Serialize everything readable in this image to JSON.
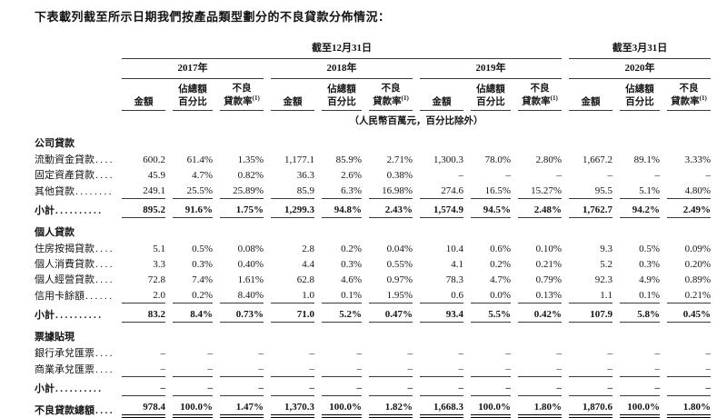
{
  "title": "下表載列截至所示日期我們按產品類型劃分的不良貸款分佈情況：",
  "table": {
    "period_groups": [
      {
        "label": "截至12月31日",
        "year_span": 3
      },
      {
        "label": "截至3月31日",
        "year_span": 1
      }
    ],
    "years": [
      "2017年",
      "2018年",
      "2019年",
      "2020年"
    ],
    "subheaders": {
      "amount": "金額",
      "share_lines": [
        "佔總額",
        "百分比"
      ],
      "npl_lines": [
        "不良",
        "貸款率"
      ],
      "npl_note_ref": "(1)"
    },
    "unit_note": "（人民幣百萬元，百分比除外）",
    "sections": [
      {
        "name": "公司貸款",
        "rows": [
          {
            "label": "流動資金貸款",
            "dots": "....",
            "values": [
              "600.2",
              "61.4%",
              "1.35%",
              "1,177.1",
              "85.9%",
              "2.71%",
              "1,300.3",
              "78.0%",
              "2.80%",
              "1,667.2",
              "89.1%",
              "3.33%"
            ]
          },
          {
            "label": "固定資產貸款",
            "dots": "....",
            "values": [
              "45.9",
              "4.7%",
              "0.82%",
              "36.3",
              "2.6%",
              "0.38%",
              "–",
              "–",
              "–",
              "–",
              "–",
              "–"
            ]
          },
          {
            "label": "其他貸款",
            "dots": "........",
            "values": [
              "249.1",
              "25.5%",
              "25.89%",
              "85.9",
              "6.3%",
              "16.98%",
              "274.6",
              "16.5%",
              "15.27%",
              "95.5",
              "5.1%",
              "4.80%"
            ]
          }
        ],
        "subtotal": {
          "label": "小計",
          "dots": "..........",
          "values": [
            "895.2",
            "91.6%",
            "1.75%",
            "1,299.3",
            "94.8%",
            "2.43%",
            "1,574.9",
            "94.5%",
            "2.48%",
            "1,762.7",
            "94.2%",
            "2.49%"
          ]
        }
      },
      {
        "name": "個人貸款",
        "rows": [
          {
            "label": "住房按揭貸款",
            "dots": "....",
            "values": [
              "5.1",
              "0.5%",
              "0.08%",
              "2.8",
              "0.2%",
              "0.04%",
              "10.4",
              "0.6%",
              "0.10%",
              "9.3",
              "0.5%",
              "0.09%"
            ]
          },
          {
            "label": "個人消費貸款",
            "dots": "....",
            "values": [
              "3.3",
              "0.3%",
              "0.40%",
              "4.4",
              "0.3%",
              "0.55%",
              "4.1",
              "0.2%",
              "0.21%",
              "5.2",
              "0.3%",
              "0.20%"
            ]
          },
          {
            "label": "個人經營貸款",
            "dots": "....",
            "values": [
              "72.8",
              "7.4%",
              "1.61%",
              "62.8",
              "4.6%",
              "0.97%",
              "78.3",
              "4.7%",
              "0.79%",
              "92.3",
              "4.9%",
              "0.89%"
            ]
          },
          {
            "label": "信用卡餘額",
            "dots": "......",
            "values": [
              "2.0",
              "0.2%",
              "8.40%",
              "1.0",
              "0.1%",
              "1.95%",
              "0.6",
              "0.0%",
              "0.13%",
              "1.1",
              "0.1%",
              "0.21%"
            ]
          }
        ],
        "subtotal": {
          "label": "小計",
          "dots": "..........",
          "values": [
            "83.2",
            "8.4%",
            "0.73%",
            "71.0",
            "5.2%",
            "0.47%",
            "93.4",
            "5.5%",
            "0.42%",
            "107.9",
            "5.8%",
            "0.45%"
          ]
        }
      },
      {
        "name": "票據貼現",
        "rows": [
          {
            "label": "銀行承兌匯票",
            "dots": "....",
            "values": [
              "–",
              "–",
              "–",
              "–",
              "–",
              "–",
              "–",
              "–",
              "–",
              "–",
              "–",
              "–"
            ]
          },
          {
            "label": "商業承兌匯票",
            "dots": "....",
            "values": [
              "–",
              "–",
              "–",
              "–",
              "–",
              "–",
              "–",
              "–",
              "–",
              "–",
              "–",
              "–"
            ]
          }
        ],
        "subtotal": {
          "label": "小計",
          "dots": "..........",
          "values": [
            "–",
            "–",
            "–",
            "–",
            "–",
            "–",
            "–",
            "–",
            "–",
            "–",
            "–",
            "–"
          ]
        }
      }
    ],
    "total": {
      "label": "不良貸款總額",
      "dots": "....",
      "values": [
        "978.4",
        "100.0%",
        "1.47%",
        "1,370.3",
        "100.0%",
        "1.82%",
        "1,668.3",
        "100.0%",
        "1.80%",
        "1,870.6",
        "100.0%",
        "1.80%"
      ]
    }
  }
}
